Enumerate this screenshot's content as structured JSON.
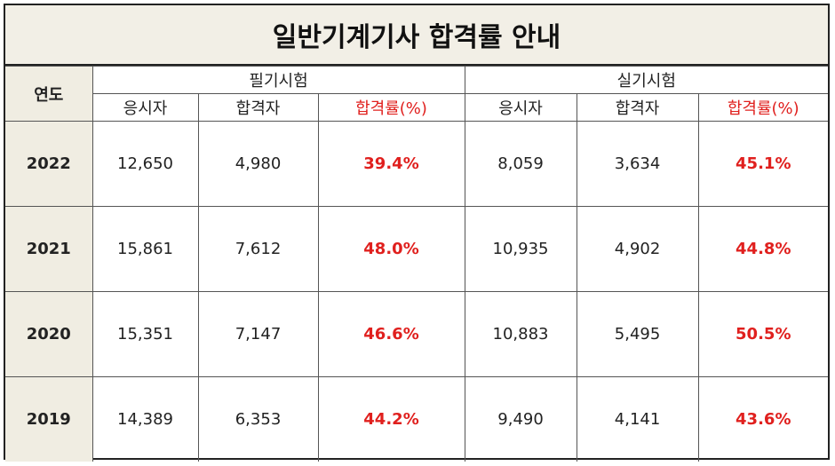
{
  "header": {
    "title": "일반기계기사 합격률 안내"
  },
  "table": {
    "year_header": "연도",
    "groups": [
      "필기시험",
      "실기시험"
    ],
    "subheaders": [
      "응시자",
      "합격자",
      "합격률(%)",
      "응시자",
      "합격자",
      "합격률(%)"
    ],
    "rows": [
      {
        "year": "2022",
        "values": [
          "12,650",
          "4,980",
          "39.4%",
          "8,059",
          "3,634",
          "45.1%"
        ]
      },
      {
        "year": "2021",
        "values": [
          "15,861",
          "7,612",
          "48.0%",
          "10,935",
          "4,902",
          "44.8%"
        ]
      },
      {
        "year": "2020",
        "values": [
          "15,351",
          "7,147",
          "46.6%",
          "10,883",
          "5,495",
          "50.5%"
        ]
      },
      {
        "year": "2019",
        "values": [
          "14,389",
          "6,353",
          "44.2%",
          "9,490",
          "4,141",
          "43.6%"
        ]
      }
    ]
  }
}
